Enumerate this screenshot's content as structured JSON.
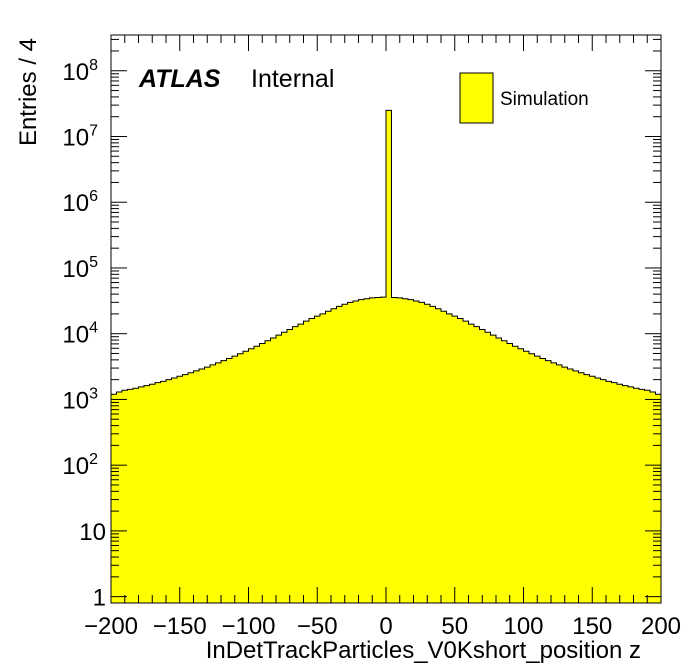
{
  "chart_data": {
    "type": "bar",
    "title": "",
    "xlabel": "InDetTrackParticles_V0Kshort_position z",
    "ylabel": "Entries / 4",
    "xlim": [
      -200,
      200
    ],
    "ylim": [
      0.8,
      350000000
    ],
    "yscale": "log",
    "bin_width": 4,
    "x_ticks": [
      "−200",
      "−150",
      "−100",
      "−50",
      "0",
      "50",
      "100",
      "150",
      "200"
    ],
    "x_tick_values": [
      -200,
      -150,
      -100,
      -50,
      0,
      50,
      100,
      150,
      200
    ],
    "y_ticks": [
      {
        "value": 1,
        "label": "1"
      },
      {
        "value": 10,
        "label": "10"
      },
      {
        "value": 100,
        "base": "10",
        "exp": "2"
      },
      {
        "value": 1000,
        "base": "10",
        "exp": "3"
      },
      {
        "value": 10000,
        "base": "10",
        "exp": "4"
      },
      {
        "value": 100000,
        "base": "10",
        "exp": "5"
      },
      {
        "value": 1000000,
        "base": "10",
        "exp": "6"
      },
      {
        "value": 10000000,
        "base": "10",
        "exp": "7"
      },
      {
        "value": 100000000,
        "base": "10",
        "exp": "8"
      }
    ],
    "grid": false,
    "legend_position": "top-right",
    "series": [
      {
        "name": "Simulation",
        "color": "#ffff00",
        "edge_color": "#000000",
        "bin_low_edges": [
          -200,
          -196,
          -192,
          -188,
          -184,
          -180,
          -176,
          -172,
          -168,
          -164,
          -160,
          -156,
          -152,
          -148,
          -144,
          -140,
          -136,
          -132,
          -128,
          -124,
          -120,
          -116,
          -112,
          -108,
          -104,
          -100,
          -96,
          -92,
          -88,
          -84,
          -80,
          -76,
          -72,
          -68,
          -64,
          -60,
          -56,
          -52,
          -48,
          -44,
          -40,
          -36,
          -32,
          -28,
          -24,
          -20,
          -16,
          -12,
          -8,
          -4,
          0,
          4,
          8,
          12,
          16,
          20,
          24,
          28,
          32,
          36,
          40,
          44,
          48,
          52,
          56,
          60,
          64,
          68,
          72,
          76,
          80,
          84,
          88,
          92,
          96,
          100,
          104,
          108,
          112,
          116,
          120,
          124,
          128,
          132,
          136,
          140,
          144,
          148,
          152,
          156,
          160,
          164,
          168,
          172,
          176,
          180,
          184,
          188,
          192,
          196
        ],
        "values": [
          1200,
          1300,
          1380,
          1420,
          1480,
          1550,
          1620,
          1700,
          1800,
          1880,
          2000,
          2120,
          2250,
          2380,
          2550,
          2720,
          2900,
          3100,
          3350,
          3600,
          3900,
          4200,
          4550,
          4950,
          5400,
          5900,
          6450,
          7100,
          7800,
          8600,
          9500,
          10500,
          11600,
          12800,
          14000,
          15500,
          17000,
          18500,
          20000,
          22000,
          24000,
          26000,
          28000,
          30000,
          31500,
          33000,
          34000,
          35000,
          35500,
          36000,
          25000000,
          35500,
          35000,
          34000,
          33000,
          31500,
          30000,
          28000,
          26000,
          24000,
          22000,
          20000,
          18500,
          17000,
          15500,
          14000,
          12800,
          11600,
          10500,
          9500,
          8600,
          7800,
          7100,
          6450,
          5900,
          5400,
          4950,
          4550,
          4200,
          3900,
          3600,
          3350,
          3100,
          2900,
          2720,
          2550,
          2380,
          2250,
          2120,
          2000,
          1880,
          1800,
          1700,
          1620,
          1550,
          1480,
          1420,
          1380,
          1300,
          1200
        ]
      }
    ]
  },
  "annotations": {
    "atlas": "ATLAS",
    "status": "Internal"
  }
}
